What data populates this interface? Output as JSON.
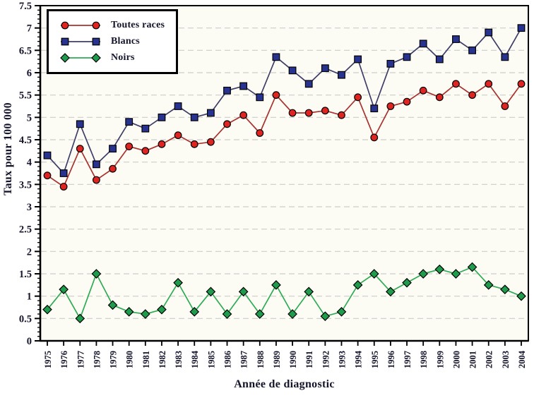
{
  "chart_data": {
    "type": "line",
    "title": "",
    "xlabel": "Année de diagnostic",
    "ylabel": "Taux pour 100 000",
    "x": [
      1975,
      1976,
      1977,
      1978,
      1979,
      1980,
      1981,
      1982,
      1983,
      1984,
      1985,
      1986,
      1987,
      1988,
      1989,
      1990,
      1991,
      1992,
      1993,
      1994,
      1995,
      1996,
      1997,
      1998,
      1999,
      2000,
      2001,
      2002,
      2003,
      2004
    ],
    "ylim": [
      0,
      7.5
    ],
    "y_ticks": [
      0,
      0.5,
      1,
      1.5,
      2,
      2.5,
      3,
      3.5,
      4,
      4.5,
      5,
      5.5,
      6,
      6.5,
      7,
      7.5
    ],
    "y_minor_tick_step": 0.1,
    "grid": "horizontal-dashed",
    "legend_position": "top-left",
    "series": [
      {
        "id": "toutes-races",
        "name": "Toutes races",
        "marker": "circle",
        "line_color": "#a8322f",
        "marker_color": "#e02421",
        "values": [
          3.7,
          3.45,
          4.3,
          3.6,
          3.85,
          4.35,
          4.25,
          4.4,
          4.6,
          4.4,
          4.45,
          4.85,
          5.05,
          4.65,
          5.5,
          5.1,
          5.1,
          5.15,
          5.05,
          5.45,
          4.55,
          5.25,
          5.35,
          5.6,
          5.45,
          5.75,
          5.5,
          5.75,
          5.25,
          5.75
        ]
      },
      {
        "id": "blancs",
        "name": "Blancs",
        "marker": "square",
        "line_color": "#3e3e68",
        "marker_color": "#283390",
        "values": [
          4.15,
          3.75,
          4.85,
          3.95,
          4.3,
          4.9,
          4.75,
          5.0,
          5.25,
          5.0,
          5.1,
          5.6,
          5.7,
          5.45,
          6.35,
          6.05,
          5.75,
          6.1,
          5.95,
          6.3,
          5.2,
          6.2,
          6.35,
          6.65,
          6.3,
          6.75,
          6.5,
          6.9,
          6.35,
          7.0
        ]
      },
      {
        "id": "noirs",
        "name": "Noirs",
        "marker": "diamond",
        "line_color": "#2eac55",
        "marker_color": "#1e9c4c",
        "values": [
          0.7,
          1.15,
          0.5,
          1.5,
          0.8,
          0.65,
          0.6,
          0.7,
          1.3,
          0.65,
          1.1,
          0.6,
          1.1,
          0.6,
          1.25,
          0.6,
          1.1,
          0.55,
          0.65,
          1.25,
          1.5,
          1.1,
          1.3,
          1.5,
          1.6,
          1.5,
          1.65,
          1.25,
          1.15,
          1.0
        ]
      }
    ]
  },
  "colors": {
    "plot_background": "#fdfcf4",
    "grid_line": "#cccccc",
    "frame": "#000000",
    "tick": "#000000",
    "text": "#14142a",
    "marker_outline": "#000000"
  }
}
